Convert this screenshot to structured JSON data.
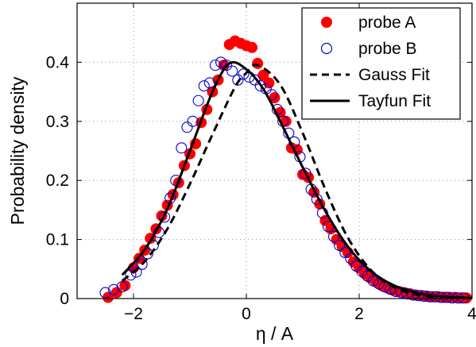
{
  "chart_data": {
    "type": "scatter",
    "xlabel": "η / A",
    "ylabel": "Probability density",
    "xlim": [
      -3,
      4
    ],
    "ylim": [
      0,
      0.5
    ],
    "xticks": [
      -2,
      0,
      2,
      4
    ],
    "yticks": [
      0,
      0.1,
      0.2,
      0.3,
      0.4
    ],
    "xtick_labels": [
      "−2",
      "0",
      "2",
      "4"
    ],
    "ytick_labels": [
      "0",
      "0.1",
      "0.2",
      "0.3",
      "0.4"
    ],
    "grid": true,
    "legend_position": "top-right",
    "colors": {
      "probeA": "#ff0000",
      "probeB": "#0000cc",
      "fit": "#000000"
    },
    "series": [
      {
        "name": "probe A",
        "style": "filled-circle",
        "x": [
          -2.45,
          -2.3,
          -2.15,
          -2.0,
          -1.9,
          -1.8,
          -1.7,
          -1.6,
          -1.5,
          -1.4,
          -1.3,
          -1.2,
          -1.1,
          -1.0,
          -0.9,
          -0.8,
          -0.7,
          -0.6,
          -0.5,
          -0.4,
          -0.3,
          -0.2,
          -0.1,
          0.0,
          0.1,
          0.2,
          0.3,
          0.4,
          0.5,
          0.6,
          0.7,
          0.8,
          0.9,
          1.0,
          1.1,
          1.2,
          1.3,
          1.4,
          1.5,
          1.6,
          1.7,
          1.8,
          1.9,
          2.0,
          2.1,
          2.2,
          2.3,
          2.4,
          2.5,
          2.6,
          2.7,
          2.8,
          2.9,
          3.0,
          3.1,
          3.2,
          3.3,
          3.4,
          3.5,
          3.6,
          3.7,
          3.8,
          3.9
        ],
        "y": [
          0.002,
          0.01,
          0.022,
          0.052,
          0.068,
          0.082,
          0.102,
          0.118,
          0.14,
          0.158,
          0.176,
          0.196,
          0.225,
          0.245,
          0.262,
          0.298,
          0.32,
          0.35,
          0.37,
          0.395,
          0.43,
          0.436,
          0.432,
          0.428,
          0.425,
          0.398,
          0.378,
          0.365,
          0.34,
          0.315,
          0.3,
          0.255,
          0.252,
          0.21,
          0.205,
          0.18,
          0.16,
          0.132,
          0.118,
          0.1,
          0.088,
          0.078,
          0.062,
          0.052,
          0.042,
          0.035,
          0.028,
          0.022,
          0.018,
          0.014,
          0.012,
          0.01,
          0.008,
          0.006,
          0.005,
          0.004,
          0.003,
          0.003,
          0.002,
          0.002,
          0.002,
          0.001,
          0.001
        ]
      },
      {
        "name": "probe B",
        "style": "open-circle",
        "x": [
          -2.5,
          -2.35,
          -2.2,
          -2.05,
          -1.95,
          -1.85,
          -1.75,
          -1.65,
          -1.55,
          -1.45,
          -1.35,
          -1.25,
          -1.15,
          -1.05,
          -0.95,
          -0.85,
          -0.75,
          -0.65,
          -0.55,
          -0.45,
          -0.35,
          -0.25,
          -0.15,
          -0.05,
          0.05,
          0.15,
          0.25,
          0.35,
          0.45,
          0.55,
          0.65,
          0.75,
          0.85,
          0.95,
          1.05,
          1.15,
          1.25,
          1.35,
          1.45,
          1.55,
          1.65,
          1.75,
          1.85,
          1.95,
          2.05,
          2.15,
          2.25,
          2.35,
          2.45,
          2.55,
          2.65,
          2.75,
          2.85,
          2.95,
          3.05,
          3.15,
          3.25,
          3.35,
          3.45,
          3.55,
          3.65,
          3.75,
          3.85
        ],
        "y": [
          0.01,
          0.015,
          0.02,
          0.04,
          0.045,
          0.058,
          0.076,
          0.09,
          0.112,
          0.138,
          0.17,
          0.2,
          0.255,
          0.29,
          0.3,
          0.335,
          0.36,
          0.365,
          0.395,
          0.4,
          0.395,
          0.385,
          0.37,
          0.38,
          0.375,
          0.37,
          0.36,
          0.355,
          0.345,
          0.32,
          0.3,
          0.28,
          0.265,
          0.24,
          0.212,
          0.185,
          0.168,
          0.145,
          0.122,
          0.105,
          0.09,
          0.078,
          0.068,
          0.055,
          0.046,
          0.038,
          0.03,
          0.025,
          0.02,
          0.016,
          0.012,
          0.01,
          0.008,
          0.006,
          0.005,
          0.004,
          0.003,
          0.003,
          0.002,
          0.002,
          0.001,
          0.001,
          0.001
        ]
      },
      {
        "name": "Gauss Fit",
        "style": "dashed-line",
        "x": [
          -2.2,
          -1.8,
          -1.4,
          -1.0,
          -0.6,
          -0.2,
          0.0,
          0.2,
          0.6,
          1.0,
          1.4,
          1.8,
          2.2,
          2.6,
          3.0,
          3.4
        ],
        "y": [
          0.03,
          0.063,
          0.118,
          0.194,
          0.278,
          0.358,
          0.382,
          0.395,
          0.362,
          0.28,
          0.185,
          0.103,
          0.049,
          0.02,
          0.007,
          0.002
        ]
      },
      {
        "name": "Tayfun Fit",
        "style": "solid-line",
        "x": [
          -2.2,
          -1.8,
          -1.4,
          -1.0,
          -0.6,
          -0.3,
          0.0,
          0.3,
          0.6,
          1.0,
          1.4,
          1.8,
          2.2,
          2.6,
          3.0,
          3.4,
          3.8,
          4.0
        ],
        "y": [
          0.04,
          0.083,
          0.152,
          0.25,
          0.35,
          0.398,
          0.388,
          0.355,
          0.3,
          0.222,
          0.148,
          0.088,
          0.047,
          0.023,
          0.01,
          0.004,
          0.002,
          0.001
        ]
      }
    ]
  }
}
